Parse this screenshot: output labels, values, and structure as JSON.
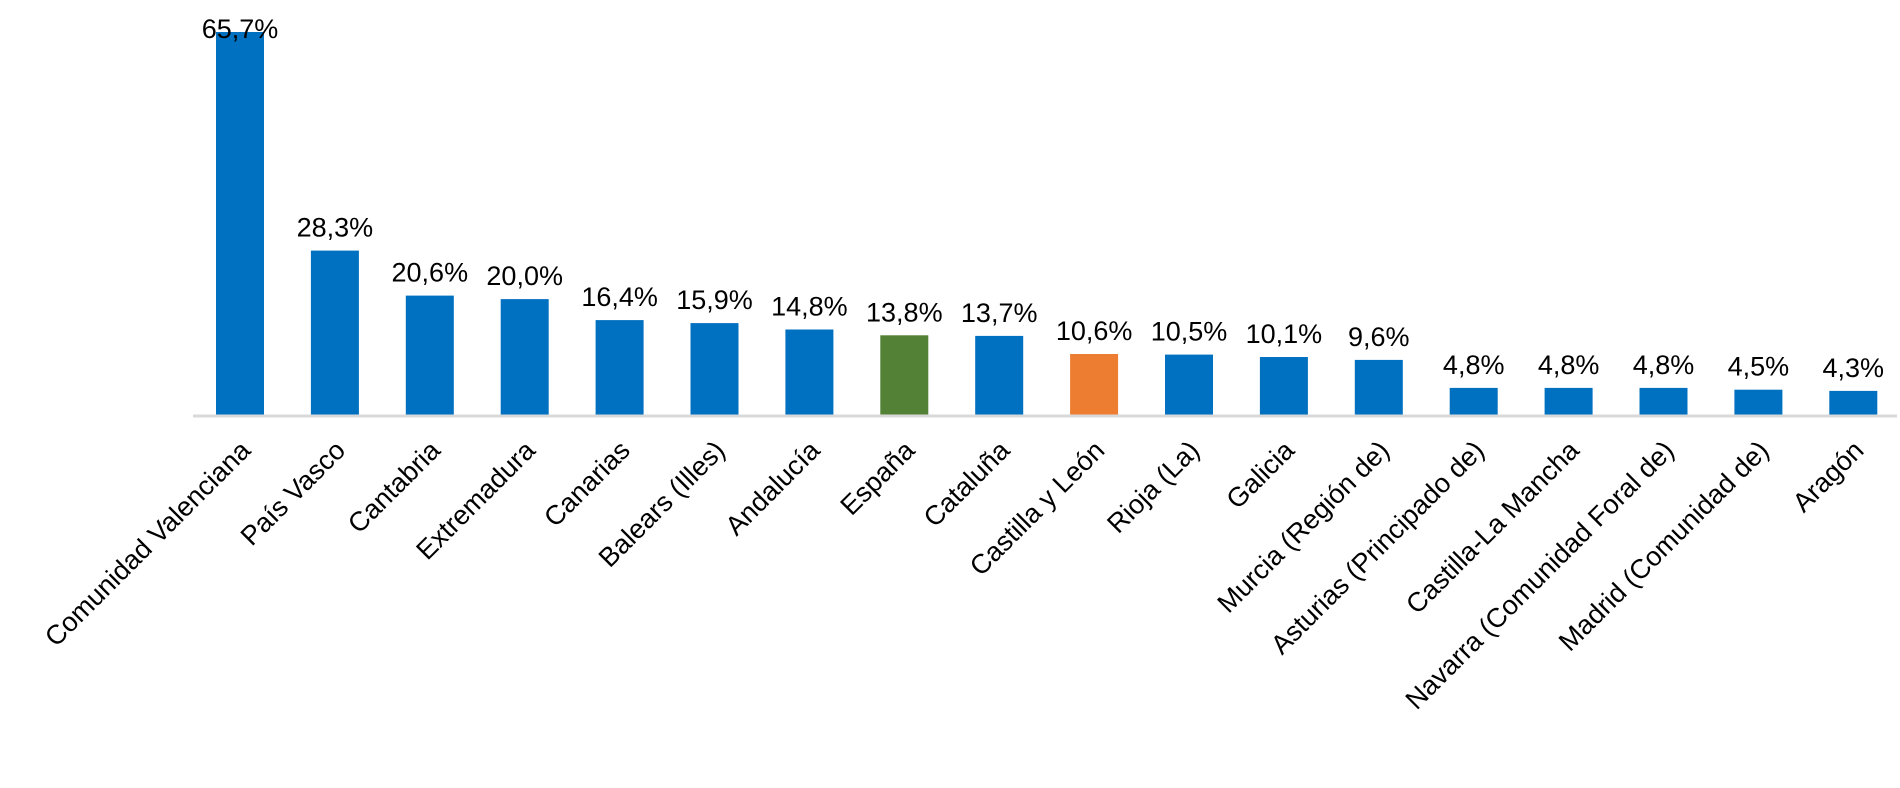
{
  "chart_data": {
    "type": "bar",
    "title": "",
    "xlabel": "",
    "ylabel": "",
    "ylim": [
      0,
      65.7
    ],
    "grid": false,
    "legend": "none",
    "categories": [
      "Comunidad Valenciana",
      "País Vasco",
      "Cantabria",
      "Extremadura",
      "Canarias",
      "Balears (Illes)",
      "Andalucía",
      "España",
      "Cataluña",
      "Castilla y León",
      "Rioja (La)",
      "Galicia",
      "Murcia (Región de)",
      "Asturias (Principado de)",
      "Castilla-La Mancha",
      "Navarra (Comunidad Foral de)",
      "Madrid (Comunidad de)",
      "Aragón"
    ],
    "values": [
      65.7,
      28.3,
      20.6,
      20.0,
      16.4,
      15.9,
      14.8,
      13.8,
      13.7,
      10.6,
      10.5,
      10.1,
      9.6,
      4.8,
      4.8,
      4.8,
      4.5,
      4.3
    ],
    "value_labels": [
      "65,7%",
      "28,3%",
      "20,6%",
      "20,0%",
      "16,4%",
      "15,9%",
      "14,8%",
      "13,8%",
      "13,7%",
      "10,6%",
      "10,5%",
      "10,1%",
      "9,6%",
      "4,8%",
      "4,8%",
      "4,8%",
      "4,5%",
      "4,3%"
    ],
    "colors": {
      "default": "#0070c0",
      "España": "#538135",
      "Castilla y León": "#ed7d31",
      "axis": "#d9d9d9"
    }
  }
}
